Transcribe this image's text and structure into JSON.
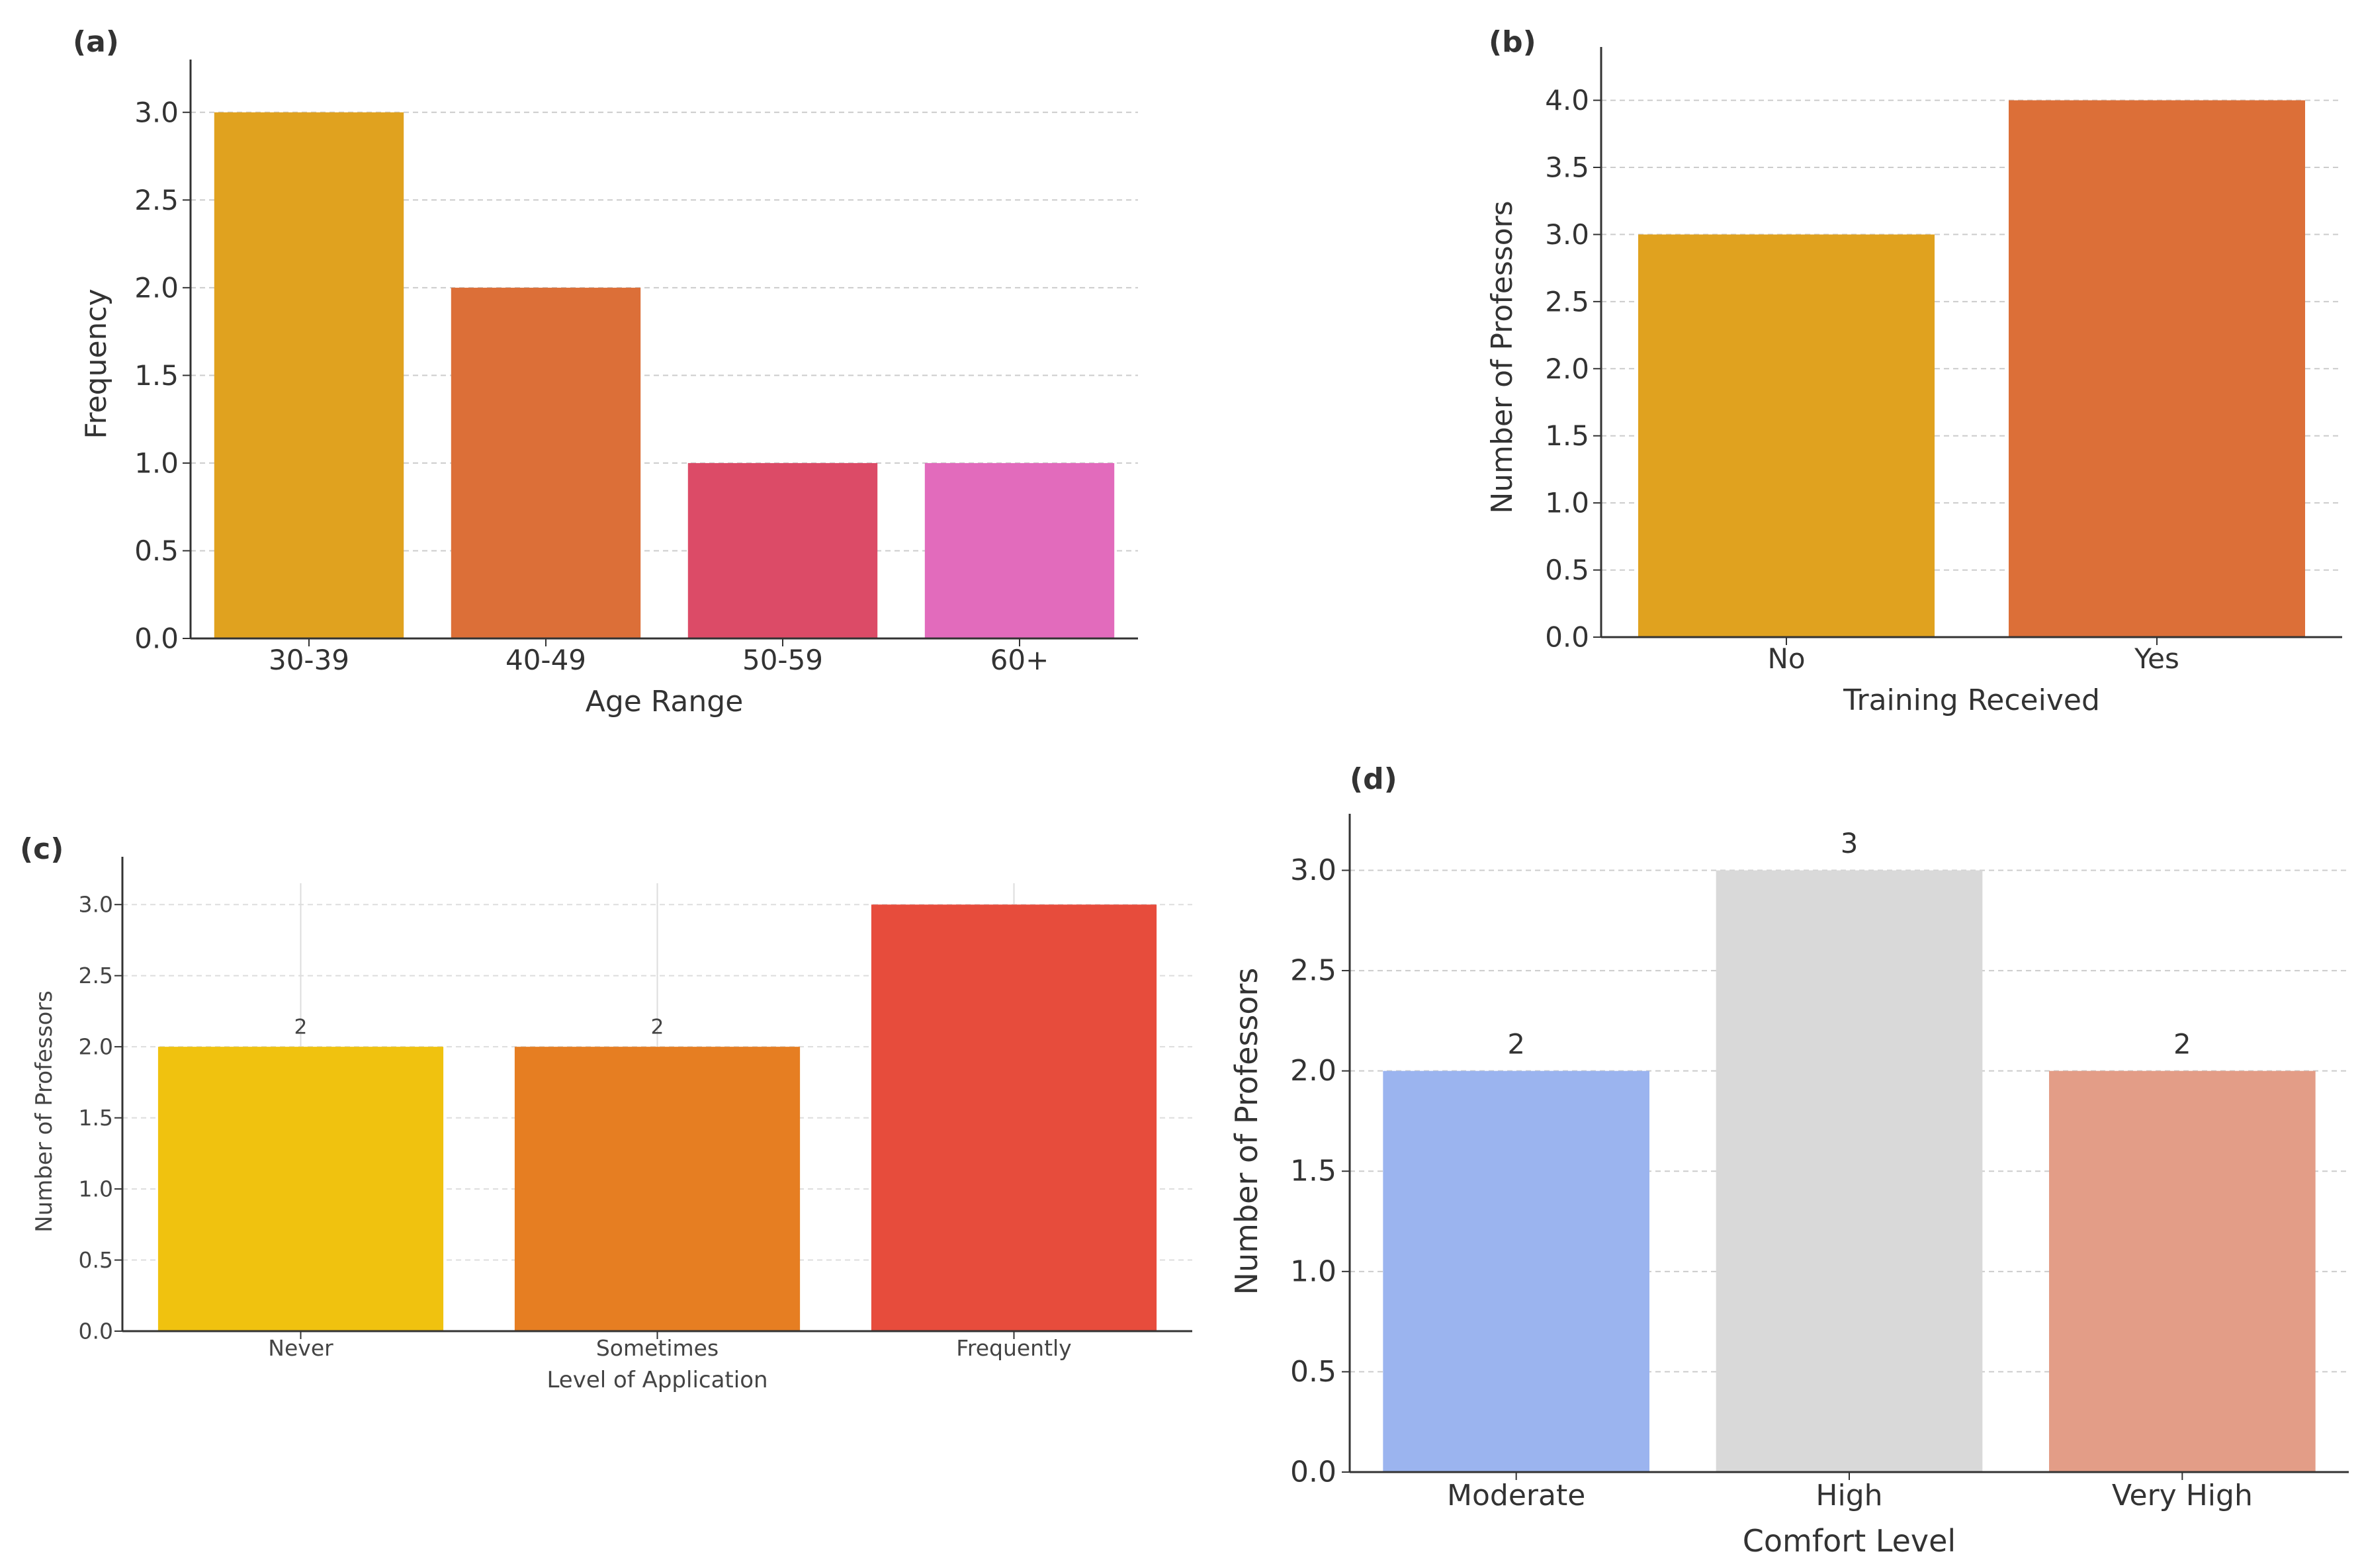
{
  "chart_data": [
    {
      "panel_label": "(a)",
      "type": "bar",
      "categories": [
        "30-39",
        "40-49",
        "50-59",
        "60+"
      ],
      "values": [
        3,
        2,
        1,
        1
      ],
      "colors": [
        "#e0a21f",
        "#dc6f38",
        "#dc4b67",
        "#e26bbc"
      ],
      "xlabel": "Age Range",
      "ylabel": "Frequency",
      "ylim": [
        0,
        3.15
      ],
      "yticks": [
        "0.0",
        "0.5",
        "1.0",
        "1.5",
        "2.0",
        "2.5",
        "3.0"
      ],
      "grid": "horizontal",
      "bar_labels": []
    },
    {
      "panel_label": "(b)",
      "type": "bar",
      "categories": [
        "No",
        "Yes"
      ],
      "values": [
        3,
        4
      ],
      "colors": [
        "#e0a21f",
        "#dc6f38"
      ],
      "xlabel": "Training Received",
      "ylabel": "Number of Professors",
      "ylim": [
        0,
        4.2
      ],
      "yticks": [
        "0.0",
        "0.5",
        "1.0",
        "1.5",
        "2.0",
        "2.5",
        "3.0",
        "3.5",
        "4.0"
      ],
      "grid": "horizontal",
      "bar_labels": []
    },
    {
      "panel_label": "(c)",
      "type": "bar",
      "categories": [
        "Never",
        "Sometimes",
        "Frequently"
      ],
      "values": [
        2,
        2,
        3
      ],
      "colors": [
        "#f0c20f",
        "#e67e22",
        "#e74c3c"
      ],
      "xlabel": "Level of Application",
      "ylabel": "Number of Professors",
      "ylim": [
        0,
        3.15
      ],
      "yticks": [
        "0.0",
        "0.5",
        "1.0",
        "1.5",
        "2.0",
        "2.5",
        "3.0"
      ],
      "grid": "both",
      "bar_labels": [
        "2",
        "2",
        ""
      ]
    },
    {
      "panel_label": "(d)",
      "type": "bar",
      "categories": [
        "Moderate",
        "High",
        "Very High"
      ],
      "values": [
        2,
        3,
        2
      ],
      "colors": [
        "#9bb4ef",
        "#d9d9d9",
        "#e39d87"
      ],
      "xlabel": "Comfort Level",
      "ylabel": "Number of Professors",
      "ylim": [
        0,
        3.15
      ],
      "yticks": [
        "0.0",
        "0.5",
        "1.0",
        "1.5",
        "2.0",
        "2.5",
        "3.0"
      ],
      "grid": "horizontal",
      "bar_labels": [
        "2",
        "3",
        "2"
      ]
    }
  ]
}
